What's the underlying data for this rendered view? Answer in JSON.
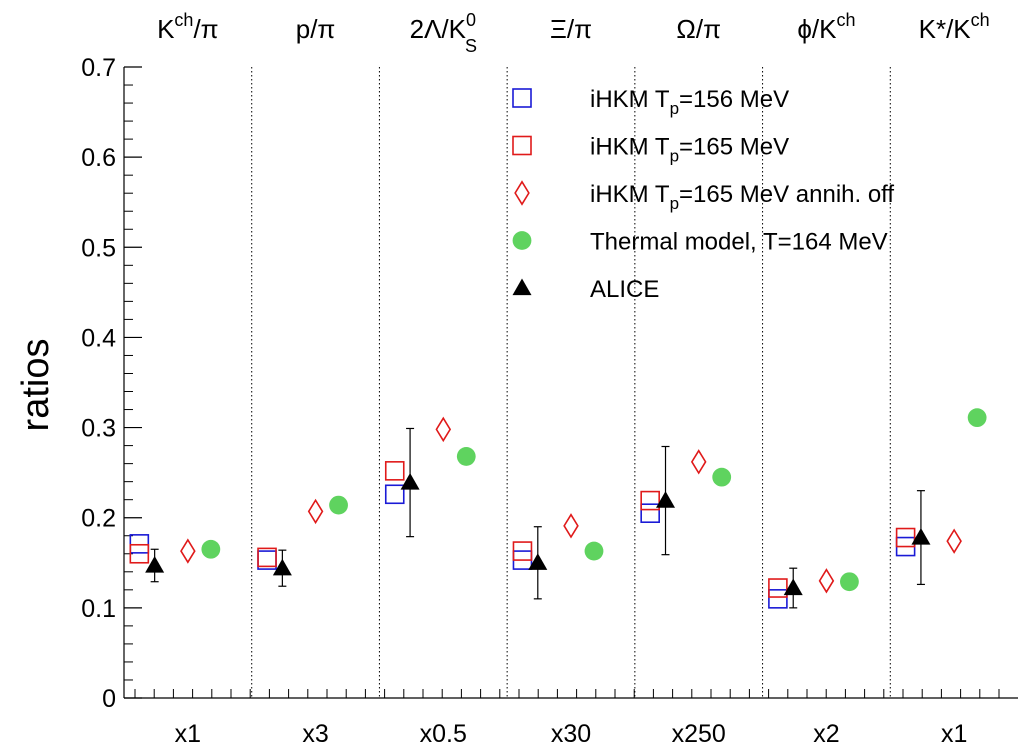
{
  "chart_data": {
    "type": "scatter",
    "ylabel": "ratios",
    "ylim": [
      0,
      0.7
    ],
    "y_ticks": [
      "0",
      "0.1",
      "0.2",
      "0.3",
      "0.4",
      "0.5",
      "0.6",
      "0.7"
    ],
    "categories": [
      {
        "main": "K",
        "sup": "ch",
        "tail": "/π",
        "sub": "",
        "scale": "x1"
      },
      {
        "main": "p/π",
        "sup": "",
        "tail": "",
        "sub": "",
        "scale": "x3"
      },
      {
        "main": "2Λ/K",
        "sup": "0",
        "tail": "",
        "sub": "S",
        "scale": "x0.5"
      },
      {
        "main": "Ξ/π",
        "sup": "",
        "tail": "",
        "sub": "",
        "scale": "x30"
      },
      {
        "main": "Ω/π",
        "sup": "",
        "tail": "",
        "sub": "",
        "scale": "x250"
      },
      {
        "main": "ϕ/K",
        "sup": "ch",
        "tail": "",
        "sub": "",
        "scale": "x2"
      },
      {
        "main": "K*/K",
        "sup": "ch",
        "tail": "",
        "sub": "",
        "scale": "x1"
      }
    ],
    "legend_position": "top-right",
    "series": [
      {
        "name": "iHKM T_p=156 MeV",
        "legend_main": "iHKM T",
        "legend_sub": "p",
        "legend_tail": "=156 MeV",
        "marker": "open-square",
        "color": "#1a1ad6",
        "values": [
          0.171,
          0.153,
          0.226,
          0.153,
          0.205,
          0.11,
          0.168
        ]
      },
      {
        "name": "iHKM T_p=165 MeV",
        "legend_main": "iHKM T",
        "legend_sub": "p",
        "legend_tail": "=165 MeV",
        "marker": "open-square",
        "color": "#e01a1a",
        "values": [
          0.16,
          0.156,
          0.252,
          0.163,
          0.219,
          0.122,
          0.178
        ]
      },
      {
        "name": "iHKM T_p=165 MeV annih. off",
        "legend_main": "iHKM T",
        "legend_sub": "p",
        "legend_tail": "=165 MeV annih. off",
        "marker": "open-diamond",
        "color": "#e01a1a",
        "values": [
          0.163,
          0.207,
          0.298,
          0.191,
          0.262,
          0.13,
          0.174
        ]
      },
      {
        "name": "Thermal model, T=164 MeV",
        "legend_main": "Thermal model, T=164 MeV",
        "legend_sub": "",
        "legend_tail": "",
        "marker": "filled-circle",
        "color": "#5fd35f",
        "values": [
          0.165,
          0.214,
          0.268,
          0.163,
          0.245,
          0.129,
          0.311
        ]
      },
      {
        "name": "ALICE",
        "legend_main": "ALICE",
        "legend_sub": "",
        "legend_tail": "",
        "marker": "filled-triangle",
        "color": "#000000",
        "values": [
          0.147,
          0.144,
          0.239,
          0.15,
          0.219,
          0.122,
          0.178
        ],
        "errors": [
          0.018,
          0.02,
          0.06,
          0.04,
          0.06,
          0.022,
          0.052
        ]
      }
    ]
  }
}
